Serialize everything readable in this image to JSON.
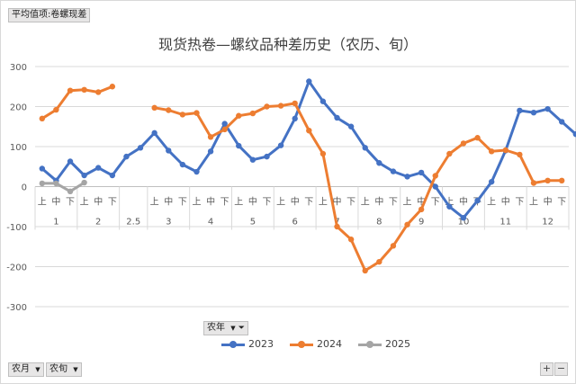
{
  "pivot": {
    "value_field": "平均值项:卷螺现差",
    "series_field": "农年",
    "row_fields": [
      "农月",
      "农旬"
    ],
    "zoom_in": "+",
    "zoom_out": "−"
  },
  "chart_data": {
    "type": "line",
    "title": "现货热卷—螺纹品种差历史（农历、旬）",
    "ylim": [
      -300,
      300
    ],
    "yticks": [
      300,
      200,
      100,
      0,
      -100,
      -200,
      -300
    ],
    "grid": true,
    "legend_position": "bottom",
    "groups": [
      {
        "label": "1",
        "subs": [
          "上",
          "中",
          "下"
        ]
      },
      {
        "label": "2",
        "subs": [
          "上",
          "中",
          "下"
        ]
      },
      {
        "label": "2.5",
        "subs": [
          null,
          null
        ]
      },
      {
        "label": "3",
        "subs": [
          "上",
          "中",
          "下"
        ]
      },
      {
        "label": "4",
        "subs": [
          "上",
          "中",
          "下"
        ]
      },
      {
        "label": "5",
        "subs": [
          "上",
          "中",
          "下"
        ]
      },
      {
        "label": "6",
        "subs": [
          "上",
          "中",
          "下"
        ]
      },
      {
        "label": "7",
        "subs": [
          "上",
          "中",
          "下"
        ]
      },
      {
        "label": "8",
        "subs": [
          "上",
          "中",
          "下"
        ]
      },
      {
        "label": "9",
        "subs": [
          "上",
          "中",
          "下"
        ]
      },
      {
        "label": "10",
        "subs": [
          "上",
          "中",
          "下"
        ]
      },
      {
        "label": "11",
        "subs": [
          "上",
          "中",
          "下"
        ]
      },
      {
        "label": "12",
        "subs": [
          "上",
          "中",
          "下"
        ]
      }
    ],
    "series": [
      {
        "name": "2023",
        "color": "#4472c4",
        "values": [
          45,
          15,
          63,
          28,
          47,
          28,
          75,
          97,
          134,
          90,
          55,
          37,
          88,
          157,
          102,
          67,
          75,
          103,
          170,
          263,
          213,
          172,
          150,
          97,
          59,
          38,
          25,
          35,
          0,
          -50,
          -78,
          -35,
          12,
          90,
          190,
          185,
          194,
          162,
          131
        ]
      },
      {
        "name": "2024",
        "color": "#ed7d31",
        "values": [
          170,
          192,
          240,
          242,
          236,
          250,
          null,
          null,
          197,
          191,
          180,
          184,
          124,
          143,
          177,
          183,
          200,
          202,
          208,
          140,
          82,
          -100,
          -132,
          -210,
          -188,
          -148,
          -95,
          -57,
          27,
          82,
          108,
          122,
          88,
          91,
          80,
          9,
          15,
          15,
          null
        ]
      },
      {
        "name": "2025",
        "color": "#a5a5a5",
        "values": [
          8,
          8,
          -12,
          10,
          null,
          null,
          null,
          null,
          null,
          null,
          null,
          null,
          null,
          null,
          null,
          null,
          null,
          null,
          null,
          null,
          null,
          null,
          null,
          null,
          null,
          null,
          null,
          null,
          null,
          null,
          null,
          null,
          null,
          null,
          null,
          null,
          null,
          null,
          null
        ]
      }
    ]
  }
}
